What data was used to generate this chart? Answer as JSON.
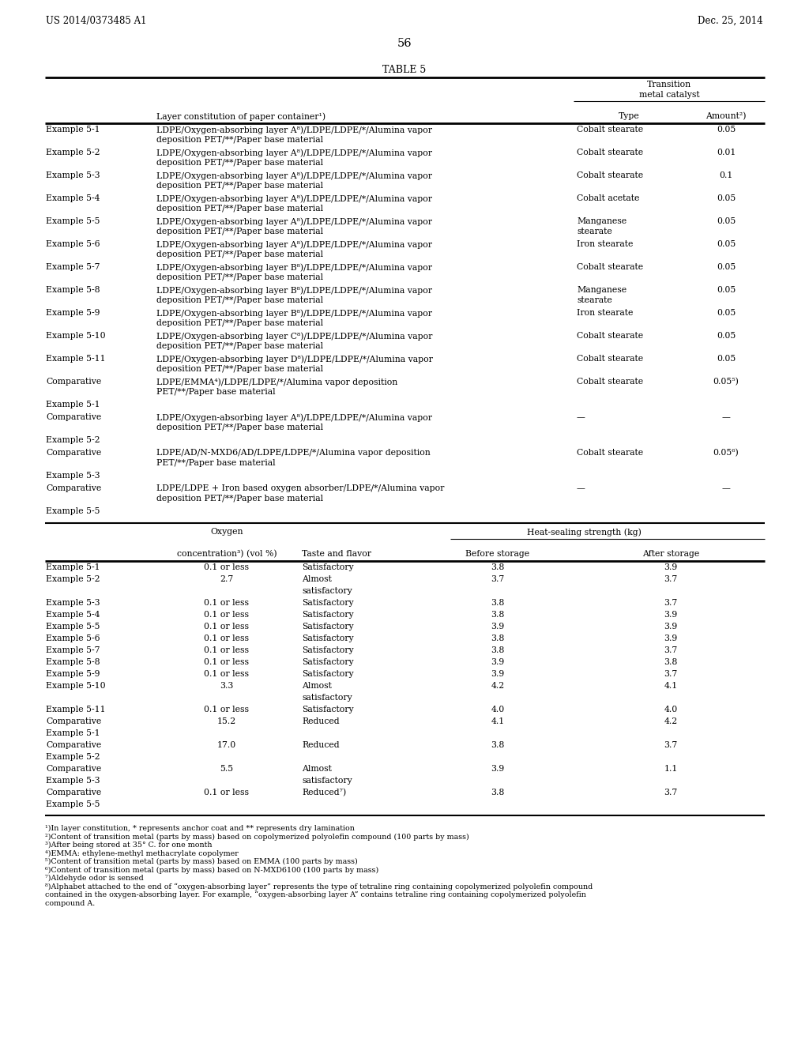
{
  "header_left": "US 2014/0373485 A1",
  "header_right": "Dec. 25, 2014",
  "page_number": "56",
  "table_title": "TABLE 5",
  "background_color": "#ffffff",
  "top_rows": [
    [
      "Example 5-1",
      "LDPE/Oxygen-absorbing layer A⁸)/LDPE/LDPE/*/Alumina vapor",
      "deposition PET/**/Paper base material",
      "Cobalt stearate",
      "",
      "0.05"
    ],
    [
      "Example 5-2",
      "LDPE/Oxygen-absorbing layer A⁸)/LDPE/LDPE/*/Alumina vapor",
      "deposition PET/**/Paper base material",
      "Cobalt stearate",
      "",
      "0.01"
    ],
    [
      "Example 5-3",
      "LDPE/Oxygen-absorbing layer A⁸)/LDPE/LDPE/*/Alumina vapor",
      "deposition PET/**/Paper base material",
      "Cobalt stearate",
      "",
      "0.1"
    ],
    [
      "Example 5-4",
      "LDPE/Oxygen-absorbing layer A⁸)/LDPE/LDPE/*/Alumina vapor",
      "deposition PET/**/Paper base material",
      "Cobalt acetate",
      "",
      "0.05"
    ],
    [
      "Example 5-5",
      "LDPE/Oxygen-absorbing layer A⁸)/LDPE/LDPE/*/Alumina vapor",
      "deposition PET/**/Paper base material",
      "Manganese",
      "stearate",
      "0.05"
    ],
    [
      "Example 5-6",
      "LDPE/Oxygen-absorbing layer A⁸)/LDPE/LDPE/*/Alumina vapor",
      "deposition PET/**/Paper base material",
      "Iron stearate",
      "",
      "0.05"
    ],
    [
      "Example 5-7",
      "LDPE/Oxygen-absorbing layer B⁸)/LDPE/LDPE/*/Alumina vapor",
      "deposition PET/**/Paper base material",
      "Cobalt stearate",
      "",
      "0.05"
    ],
    [
      "Example 5-8",
      "LDPE/Oxygen-absorbing layer B⁸)/LDPE/LDPE/*/Alumina vapor",
      "deposition PET/**/Paper base material",
      "Manganese",
      "stearate",
      "0.05"
    ],
    [
      "Example 5-9",
      "LDPE/Oxygen-absorbing layer B⁸)/LDPE/LDPE/*/Alumina vapor",
      "deposition PET/**/Paper base material",
      "Iron stearate",
      "",
      "0.05"
    ],
    [
      "Example 5-10",
      "LDPE/Oxygen-absorbing layer C⁸)/LDPE/LDPE/*/Alumina vapor",
      "deposition PET/**/Paper base material",
      "Cobalt stearate",
      "",
      "0.05"
    ],
    [
      "Example 5-11",
      "LDPE/Oxygen-absorbing layer D⁸)/LDPE/LDPE/*/Alumina vapor",
      "deposition PET/**/Paper base material",
      "Cobalt stearate",
      "",
      "0.05"
    ],
    [
      "Comparative",
      "LDPE/EMMA⁴)/LDPE/LDPE/*/Alumina vapor deposition",
      "PET/**/Paper base material",
      "Cobalt stearate",
      "",
      "0.05⁵)"
    ],
    [
      "Example 5-1",
      "",
      "",
      "",
      "",
      ""
    ],
    [
      "Comparative",
      "LDPE/Oxygen-absorbing layer A⁸)/LDPE/LDPE/*/Alumina vapor",
      "deposition PET/**/Paper base material",
      "—",
      "",
      "—"
    ],
    [
      "Example 5-2",
      "",
      "",
      "",
      "",
      ""
    ],
    [
      "Comparative",
      "LDPE/AD/N-MXD6/AD/LDPE/LDPE/*/Alumina vapor deposition",
      "PET/**/Paper base material",
      "Cobalt stearate",
      "",
      "0.05⁶)"
    ],
    [
      "Example 5-3",
      "",
      "",
      "",
      "",
      ""
    ],
    [
      "Comparative",
      "LDPE/LDPE + Iron based oxygen absorber/LDPE/*/Alumina vapor",
      "deposition PET/**/Paper base material",
      "—",
      "",
      "—"
    ],
    [
      "Example 5-5",
      "",
      "",
      "",
      "",
      ""
    ]
  ],
  "bot_rows": [
    [
      "Example 5-1",
      "0.1 or less",
      "Satisfactory",
      "3.8",
      "3.9"
    ],
    [
      "Example 5-2",
      "2.7",
      "Almost",
      "3.7",
      "3.7"
    ],
    [
      "",
      "",
      "satisfactory",
      "",
      ""
    ],
    [
      "Example 5-3",
      "0.1 or less",
      "Satisfactory",
      "3.8",
      "3.7"
    ],
    [
      "Example 5-4",
      "0.1 or less",
      "Satisfactory",
      "3.8",
      "3.9"
    ],
    [
      "Example 5-5",
      "0.1 or less",
      "Satisfactory",
      "3.9",
      "3.9"
    ],
    [
      "Example 5-6",
      "0.1 or less",
      "Satisfactory",
      "3.8",
      "3.9"
    ],
    [
      "Example 5-7",
      "0.1 or less",
      "Satisfactory",
      "3.8",
      "3.7"
    ],
    [
      "Example 5-8",
      "0.1 or less",
      "Satisfactory",
      "3.9",
      "3.8"
    ],
    [
      "Example 5-9",
      "0.1 or less",
      "Satisfactory",
      "3.9",
      "3.7"
    ],
    [
      "Example 5-10",
      "3.3",
      "Almost",
      "4.2",
      "4.1"
    ],
    [
      "",
      "",
      "satisfactory",
      "",
      ""
    ],
    [
      "Example 5-11",
      "0.1 or less",
      "Satisfactory",
      "4.0",
      "4.0"
    ],
    [
      "Comparative",
      "15.2",
      "Reduced",
      "4.1",
      "4.2"
    ],
    [
      "Example 5-1",
      "",
      "",
      "",
      ""
    ],
    [
      "Comparative",
      "17.0",
      "Reduced",
      "3.8",
      "3.7"
    ],
    [
      "Example 5-2",
      "",
      "",
      "",
      ""
    ],
    [
      "Comparative",
      "5.5",
      "Almost",
      "3.9",
      "1.1"
    ],
    [
      "Example 5-3",
      "",
      "satisfactory",
      "",
      ""
    ],
    [
      "Comparative",
      "0.1 or less",
      "Reduced⁷)",
      "3.8",
      "3.7"
    ],
    [
      "Example 5-5",
      "",
      "",
      "",
      ""
    ]
  ],
  "footnotes": [
    "¹)In layer constitution, * represents anchor coat and ** represents dry lamination",
    "²)Content of transition metal (parts by mass) based on copolymerized polyolefin compound (100 parts by mass)",
    "³)After being stored at 35° C. for one month",
    "⁴)EMMA: ethylene-methyl methacrylate copolymer",
    "⁵)Content of transition metal (parts by mass) based on EMMA (100 parts by mass)",
    "⁶)Content of transition metal (parts by mass) based on N-MXD6100 (100 parts by mass)",
    "⁷)Aldehyde odor is sensed",
    "⁸)Alphabet attached to the end of “oxygen-absorbing layer” represents the type of tetraline ring containing copolymerized polyolefin compound",
    "contained in the oxygen-absorbing layer. For example, “oxygen-absorbing layer A” contains tetraline ring containing copolymerized polyolefin",
    "compound A."
  ]
}
